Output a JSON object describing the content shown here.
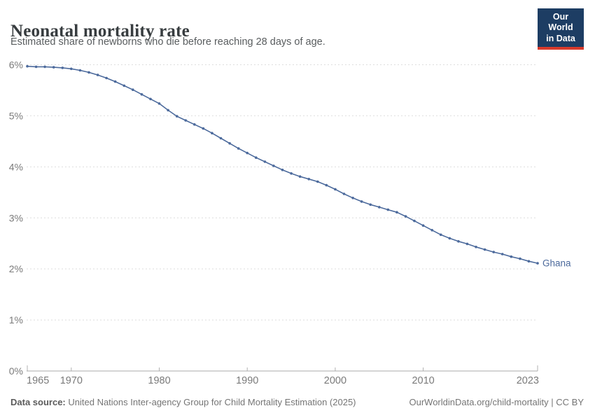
{
  "header": {
    "title": "Neonatal mortality rate",
    "subtitle": "Estimated share of newborns who die before reaching 28 days of age.",
    "logo": {
      "line1": "Our World",
      "line2": "in Data",
      "bg_color": "#1d3d63",
      "accent_color": "#d93a2b"
    }
  },
  "chart_data": {
    "type": "line",
    "title": "Neonatal mortality rate",
    "xlabel": "",
    "ylabel": "",
    "xlim": [
      1965,
      2023
    ],
    "ylim": [
      0,
      6
    ],
    "grid": "horizontal-dashed",
    "legend_position": "end-of-line-label",
    "x_ticks": [
      1965,
      1970,
      1980,
      1990,
      2000,
      2010,
      2023
    ],
    "y_ticks": [
      "0%",
      "1%",
      "2%",
      "3%",
      "4%",
      "5%",
      "6%"
    ],
    "series": [
      {
        "name": "Ghana",
        "color": "#4c6a9c",
        "years": [
          1965,
          1966,
          1967,
          1968,
          1969,
          1970,
          1971,
          1972,
          1973,
          1974,
          1975,
          1976,
          1977,
          1978,
          1979,
          1980,
          1981,
          1982,
          1983,
          1984,
          1985,
          1986,
          1987,
          1988,
          1989,
          1990,
          1991,
          1992,
          1993,
          1994,
          1995,
          1996,
          1997,
          1998,
          1999,
          2000,
          2001,
          2002,
          2003,
          2004,
          2005,
          2006,
          2007,
          2008,
          2009,
          2010,
          2011,
          2012,
          2013,
          2014,
          2015,
          2016,
          2017,
          2018,
          2019,
          2020,
          2021,
          2022,
          2023
        ],
        "values": [
          5.97,
          5.96,
          5.96,
          5.95,
          5.94,
          5.92,
          5.89,
          5.85,
          5.8,
          5.74,
          5.67,
          5.59,
          5.51,
          5.42,
          5.33,
          5.24,
          5.11,
          4.99,
          4.91,
          4.83,
          4.75,
          4.66,
          4.56,
          4.46,
          4.36,
          4.27,
          4.18,
          4.1,
          4.02,
          3.94,
          3.87,
          3.81,
          3.76,
          3.71,
          3.64,
          3.56,
          3.47,
          3.39,
          3.32,
          3.26,
          3.21,
          3.16,
          3.11,
          3.03,
          2.94,
          2.85,
          2.76,
          2.67,
          2.6,
          2.54,
          2.49,
          2.43,
          2.38,
          2.33,
          2.29,
          2.24,
          2.2,
          2.15,
          2.11
        ]
      }
    ]
  },
  "footer": {
    "source_label": "Data source:",
    "source_text": "United Nations Inter-agency Group for Child Mortality Estimation (2025)",
    "credit": "OurWorldinData.org/child-mortality | CC BY"
  },
  "colors": {
    "line": "#4c6a9c",
    "grid": "#dedede",
    "axis": "#a8a8a8",
    "tick": "#b0b0b0",
    "axis_label": "#7a7a7a"
  }
}
